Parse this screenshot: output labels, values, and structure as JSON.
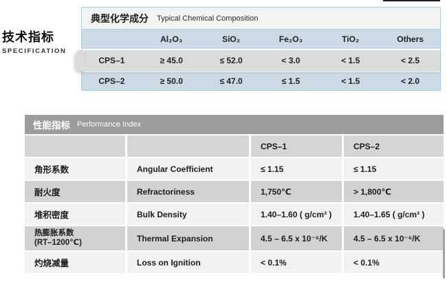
{
  "section_label": {
    "zh": "技术指标",
    "en": "SPECIFICATION"
  },
  "chemical_table": {
    "title_zh": "典型化学成分",
    "title_en": "Typical Chemical Composition",
    "columns": [
      "Al₂O₃",
      "SiO₂",
      "Fe₂O₃",
      "TiO₂",
      "Others"
    ],
    "rows": [
      {
        "name": "CPS–1",
        "values": [
          "≥ 45.0",
          "≤ 52.0",
          "< 3.0",
          "< 1.5",
          "< 2.5"
        ]
      },
      {
        "name": "CPS–2",
        "values": [
          "≥ 50.0",
          "≤ 47.0",
          "≤ 1.5",
          "< 1.5",
          "< 2.0"
        ]
      }
    ]
  },
  "performance_table": {
    "title_zh": "性能指标",
    "title_en": "Performance Index",
    "columns": [
      "CPS–1",
      "CPS–2"
    ],
    "rows": [
      {
        "zh": "角形系数",
        "en": "Angular Coefficient",
        "cps1": "≤ 1.15",
        "cps2": "≤ 1.15"
      },
      {
        "zh": "耐火度",
        "en": "Refractoriness",
        "cps1": "1,750℃",
        "cps2": "> 1,800℃"
      },
      {
        "zh": "堆积密度",
        "en": "Bulk Density",
        "cps1": "1.40–1.60 ( g/cm³ )",
        "cps2": "1.40–1.65 ( g/cm³ )"
      },
      {
        "zh": "热膨胀系数",
        "zh2": "(RT–1200℃)",
        "en": "Thermal Expansion",
        "cps1": "4.5 – 6.5  x 10⁻⁶/K",
        "cps2": "4.5 – 6.5  x 10⁻⁶/K"
      },
      {
        "zh": "灼烧减量",
        "en": "Loss on Ignition",
        "cps1": "< 0.1%",
        "cps2": "< 0.1%"
      }
    ]
  },
  "colors": {
    "blue_border": "#a5cfe3",
    "blue_row": "#cbdae4",
    "highlight_row": "#dbdbd9",
    "title_bar_gray": "#9c9c9a",
    "dark_row": "#d2d2d0",
    "light_row": "#f2f2f0"
  }
}
